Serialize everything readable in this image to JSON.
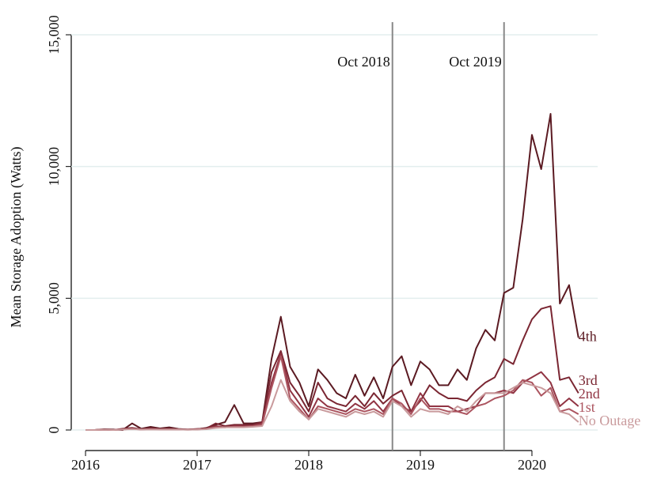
{
  "chart_data": {
    "type": "line",
    "y_label": "Mean Storage Adoption (Watts)",
    "x": [
      2016,
      2016.083,
      2016.167,
      2016.25,
      2016.333,
      2016.417,
      2016.5,
      2016.583,
      2016.667,
      2016.75,
      2016.833,
      2016.917,
      2017,
      2017.083,
      2017.167,
      2017.25,
      2017.333,
      2017.417,
      2017.5,
      2017.583,
      2017.667,
      2017.75,
      2017.833,
      2017.917,
      2018,
      2018.083,
      2018.167,
      2018.25,
      2018.333,
      2018.417,
      2018.5,
      2018.583,
      2018.667,
      2018.75,
      2018.833,
      2018.917,
      2019,
      2019.083,
      2019.167,
      2019.25,
      2019.333,
      2019.417,
      2019.5,
      2019.583,
      2019.667,
      2019.75,
      2019.833,
      2019.917,
      2020,
      2020.083,
      2020.167,
      2020.25,
      2020.333,
      2020.417
    ],
    "series": [
      {
        "name": "4th",
        "color": "#5b1a22",
        "values": [
          0,
          0,
          30,
          20,
          0,
          250,
          50,
          120,
          60,
          100,
          40,
          20,
          30,
          80,
          200,
          300,
          950,
          250,
          250,
          300,
          2700,
          4300,
          2400,
          1800,
          900,
          2300,
          1900,
          1400,
          1200,
          2100,
          1300,
          2000,
          1200,
          2400,
          2800,
          1700,
          2600,
          2300,
          1700,
          1700,
          2300,
          1900,
          3100,
          3800,
          3400,
          5200,
          5400,
          8000,
          11200,
          9900,
          12000,
          4800,
          5500,
          3500
        ]
      },
      {
        "name": "3rd",
        "color": "#7a2632",
        "values": [
          0,
          0,
          20,
          0,
          50,
          80,
          30,
          60,
          40,
          50,
          30,
          20,
          40,
          60,
          250,
          150,
          200,
          200,
          200,
          300,
          2200,
          3000,
          1800,
          1300,
          700,
          1800,
          1200,
          1000,
          900,
          1300,
          900,
          1400,
          1000,
          1300,
          1500,
          700,
          1100,
          1700,
          1400,
          1200,
          1200,
          1100,
          1500,
          1800,
          2000,
          2700,
          2500,
          3400,
          4200,
          4600,
          4700,
          1900,
          2000,
          1400
        ]
      },
      {
        "name": "2nd",
        "color": "#913443",
        "values": [
          0,
          0,
          10,
          0,
          30,
          50,
          20,
          40,
          30,
          30,
          20,
          20,
          30,
          50,
          150,
          100,
          150,
          150,
          150,
          250,
          1800,
          2900,
          1500,
          1000,
          500,
          1200,
          900,
          800,
          700,
          1000,
          800,
          1100,
          700,
          1200,
          900,
          700,
          1400,
          900,
          900,
          900,
          700,
          800,
          900,
          1400,
          1400,
          1500,
          1400,
          1800,
          2000,
          2200,
          1800,
          900,
          1200,
          900
        ]
      },
      {
        "name": "1st",
        "color": "#ac5560",
        "values": [
          0,
          0,
          10,
          0,
          20,
          40,
          20,
          30,
          20,
          20,
          20,
          10,
          20,
          40,
          100,
          100,
          120,
          120,
          150,
          200,
          1600,
          2800,
          1200,
          800,
          400,
          900,
          800,
          700,
          600,
          800,
          700,
          800,
          600,
          1200,
          1000,
          600,
          1200,
          800,
          800,
          700,
          700,
          600,
          900,
          1000,
          1200,
          1300,
          1500,
          1900,
          1800,
          1300,
          1600,
          700,
          800,
          600
        ]
      },
      {
        "name": "No Outage",
        "color": "#c99a9c",
        "values": [
          0,
          0,
          10,
          0,
          20,
          30,
          20,
          20,
          20,
          20,
          20,
          10,
          20,
          30,
          80,
          100,
          100,
          100,
          120,
          150,
          900,
          1900,
          1100,
          700,
          400,
          800,
          700,
          600,
          500,
          700,
          600,
          700,
          500,
          1100,
          900,
          500,
          800,
          700,
          700,
          600,
          900,
          700,
          1100,
          1400,
          1400,
          1400,
          1600,
          1800,
          1700,
          1600,
          1400,
          700,
          600,
          300
        ]
      }
    ],
    "annotations": [
      {
        "x": 2018.75,
        "label": "Oct 2018"
      },
      {
        "x": 2019.75,
        "label": "Oct 2019"
      }
    ],
    "xlim": [
      2015.872,
      2020.589
    ],
    "xticks": [
      2016,
      2017,
      2018,
      2019,
      2020
    ],
    "ylim": [
      -780,
      15480
    ],
    "yticks": [
      0,
      {
        "value": 5000,
        "label": "5,000"
      },
      {
        "value": 10000,
        "label": "10,000"
      },
      {
        "value": 15000,
        "label": "15,000"
      }
    ],
    "grid": true
  }
}
